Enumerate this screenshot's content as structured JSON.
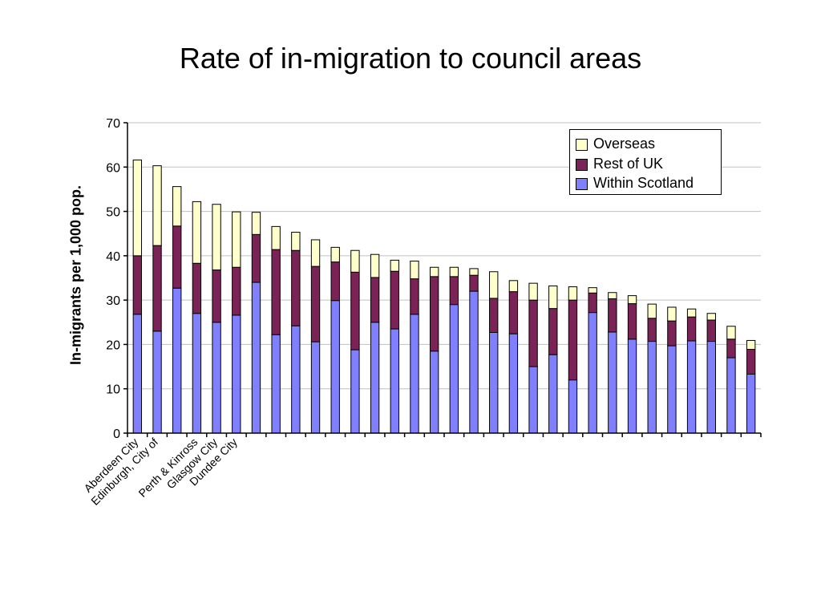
{
  "chart_data": {
    "type": "bar",
    "stacked": true,
    "title": "Rate of in-migration to council areas",
    "xlabel": "",
    "ylabel": "In-migrants per 1,000 pop.",
    "ylim": [
      0,
      70
    ],
    "yticks": [
      0,
      10,
      20,
      30,
      40,
      50,
      60,
      70
    ],
    "grid": true,
    "legend_position": "top-right",
    "categories": [
      "Aberdeen City",
      "Edinburgh, City of",
      "",
      "Perth & Kinross",
      "Glasgow City",
      "Dundee City",
      "",
      "",
      "",
      "",
      "",
      "",
      "",
      "",
      "",
      "",
      "",
      "",
      "",
      "",
      "",
      "",
      "",
      "",
      "",
      "",
      "",
      "",
      "",
      "",
      "",
      ""
    ],
    "series": [
      {
        "name": "Within Scotland",
        "color": "#8080FF",
        "values": [
          26.8,
          23,
          32.7,
          27,
          25,
          26.6,
          34,
          22.2,
          24.2,
          20.6,
          29.9,
          18.8,
          25,
          23.5,
          26.8,
          18.5,
          29,
          32,
          22.7,
          22.4,
          15,
          17.7,
          12,
          27.2,
          22.8,
          21.2,
          20.7,
          19.7,
          20.8,
          20.7,
          17,
          13.3
        ]
      },
      {
        "name": "Rest of UK",
        "color": "#7B2357",
        "values": [
          13.2,
          19.3,
          14,
          11.3,
          11.8,
          10.8,
          10.8,
          19.2,
          17,
          17,
          8.7,
          17.5,
          10.1,
          13,
          8,
          16.8,
          6.3,
          3.6,
          7.7,
          9.5,
          15,
          10.4,
          18,
          4.4,
          7.5,
          8,
          5.2,
          5.6,
          5.4,
          4.8,
          4.2,
          5.6
        ]
      },
      {
        "name": "Overseas",
        "color": "#FFFFCC",
        "values": [
          21.6,
          18,
          8.9,
          13.9,
          14.8,
          12.5,
          5,
          5.2,
          4.1,
          6,
          3.3,
          4.9,
          5.2,
          2.5,
          4,
          2.1,
          2.1,
          1.5,
          6,
          2.5,
          3.8,
          5.1,
          3,
          1.2,
          1.4,
          1.8,
          3.2,
          3.1,
          1.8,
          1.5,
          2.9,
          2
        ]
      }
    ]
  }
}
